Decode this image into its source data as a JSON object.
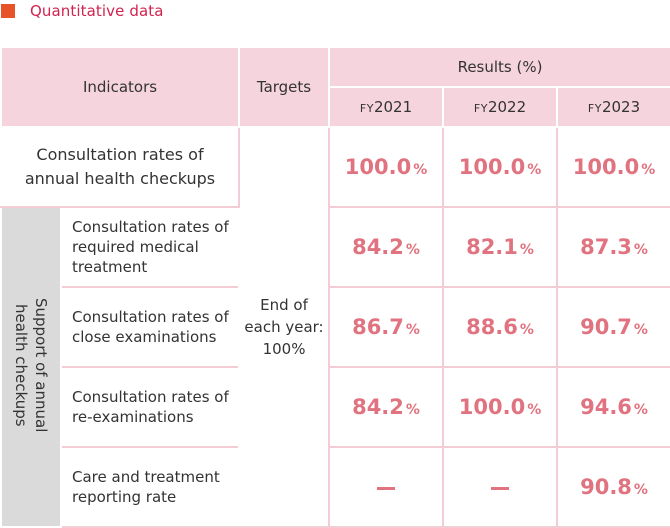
{
  "heading": {
    "text": "Quantitative data"
  },
  "headers": {
    "indicators": "Indicators",
    "targets": "Targets",
    "results": "Results (%)",
    "years": [
      {
        "prefix": "FY",
        "year": "2021"
      },
      {
        "prefix": "FY",
        "year": "2022"
      },
      {
        "prefix": "FY",
        "year": "2023"
      }
    ]
  },
  "target_text": [
    "End of",
    "each year:",
    "100%"
  ],
  "group_label": [
    "Support of annual",
    "health checkups"
  ],
  "percent_sign": "%",
  "rows": [
    {
      "label_lines": [
        "Consultation rates of",
        "annual health checkups"
      ],
      "values": [
        "100.0",
        "100.0",
        "100.0"
      ]
    },
    {
      "label_lines": [
        "Consultation rates of",
        "required medical",
        "treatment"
      ],
      "values": [
        "84.2",
        "82.1",
        "87.3"
      ]
    },
    {
      "label_lines": [
        "Consultation rates of",
        "close examinations"
      ],
      "values": [
        "86.7",
        "88.6",
        "90.7"
      ]
    },
    {
      "label_lines": [
        "Consultation rates of",
        "re-examinations"
      ],
      "values": [
        "84.2",
        "100.0",
        "94.6"
      ]
    },
    {
      "label_lines": [
        "Care and treatment",
        "reporting rate"
      ],
      "values": [
        "—",
        "—",
        "90.8"
      ]
    }
  ],
  "colors": {
    "header_bg": "#f6d4dd",
    "value_text": "#e0737f",
    "heading_text": "#d1234f",
    "heading_square": "#e8532a",
    "group_bg": "#dadada"
  }
}
